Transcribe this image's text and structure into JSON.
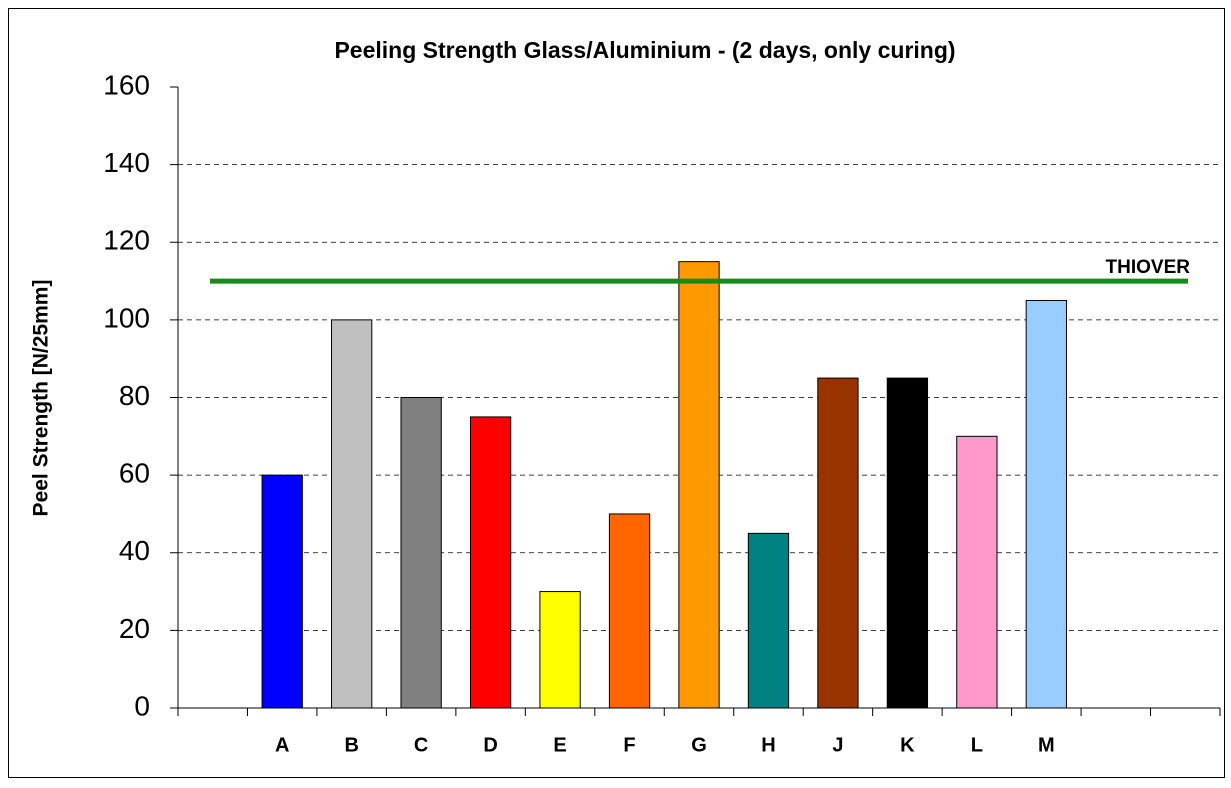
{
  "chart_data": {
    "type": "bar",
    "title": "Peeling Strength Glass/Aluminium - (2 days, only curing)",
    "ylabel": "Peel Strength [N/25mm]",
    "categories": [
      null,
      "A",
      "B",
      "C",
      "D",
      "E",
      "F",
      "G",
      "H",
      "J",
      "K",
      "L",
      "M",
      null,
      null
    ],
    "values": [
      null,
      60,
      100,
      80,
      75,
      30,
      50,
      115,
      45,
      85,
      85,
      70,
      105,
      null,
      null
    ],
    "colors": [
      null,
      "#0000ff",
      "#c0c0c0",
      "#808080",
      "#ff0000",
      "#ffff00",
      "#ff6600",
      "#ff9900",
      "#008080",
      "#993300",
      "#000000",
      "#ff99cc",
      "#99ccff",
      null,
      null
    ],
    "ylim": [
      0,
      160
    ],
    "yticks": [
      0,
      20,
      40,
      60,
      80,
      100,
      120,
      140,
      160
    ],
    "grid": true,
    "reference_line": {
      "label": "THIOVER",
      "value": 110,
      "color": "#188a18"
    }
  }
}
